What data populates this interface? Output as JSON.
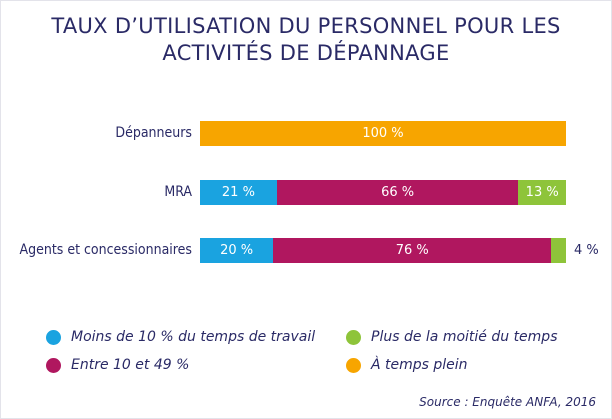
{
  "chart_data": {
    "type": "bar",
    "stacked": true,
    "orientation": "horizontal",
    "title_line1": "TAUX D’UTILISATION DU PERSONNEL POUR LES",
    "title_line2": "ACTIVITÉS DE DÉPANNAGE",
    "categories": [
      "Dépanneurs",
      "MRA",
      "Agents et concessionnaires"
    ],
    "series": [
      {
        "name": "Moins de 10 % du temps de travail",
        "color": "#1aa3e0",
        "values": [
          0,
          21,
          20
        ],
        "labels": [
          "",
          "21 %",
          "20 %"
        ]
      },
      {
        "name": "Entre 10 et 49 %",
        "color": "#b0175f",
        "values": [
          0,
          66,
          76
        ],
        "labels": [
          "",
          "66 %",
          "76 %"
        ]
      },
      {
        "name": "Plus de la moitié du temps",
        "color": "#8ec43a",
        "values": [
          0,
          13,
          4
        ],
        "labels": [
          "",
          "13 %",
          "4 %"
        ]
      },
      {
        "name": "À temps plein",
        "color": "#f7a500",
        "values": [
          100,
          0,
          0
        ],
        "labels": [
          "100 %",
          "",
          ""
        ]
      }
    ],
    "xlim": [
      0,
      100
    ],
    "source": "Source : Enquête ANFA, 2016"
  }
}
